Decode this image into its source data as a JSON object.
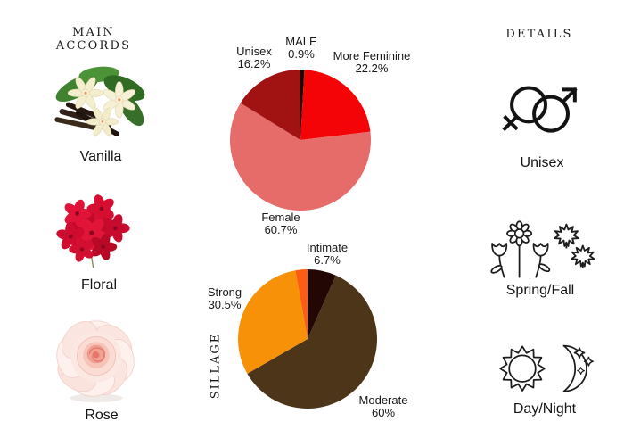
{
  "page": {
    "background": "#ffffff"
  },
  "main_accords": {
    "heading": "MAIN ACCORDS",
    "items": [
      {
        "name": "Vanilla",
        "icon": "vanilla-flowers-photo"
      },
      {
        "name": "Floral",
        "icon": "red-geranium-photo"
      },
      {
        "name": "Rose",
        "icon": "pink-rose-photo"
      }
    ]
  },
  "details": {
    "heading": "DETAILS",
    "items": [
      {
        "label": "Unisex",
        "icon": "unisex-gender-symbols-icon"
      },
      {
        "label": "Spring/Fall",
        "icon": "spring-flowers-fall-leaves-icon"
      },
      {
        "label": "Day/Night",
        "icon": "sun-moon-icon"
      }
    ]
  },
  "chart_data": [
    {
      "type": "pie",
      "name": "gender-audience",
      "start_angle": "12 o'clock",
      "direction": "clockwise",
      "legend_position": "labels around pie",
      "slices": [
        {
          "label": "MALE",
          "value": 0.9,
          "display": "0.9%",
          "color": "#0d0806"
        },
        {
          "label": "More Feminine",
          "value": 22.2,
          "display": "22.2%",
          "color": "#f50407"
        },
        {
          "label": "Female",
          "value": 60.7,
          "display": "60.7%",
          "color": "#e66c6a"
        },
        {
          "label": "Unisex",
          "value": 16.2,
          "display": "16.2%",
          "color": "#a11312"
        }
      ]
    },
    {
      "type": "pie",
      "name": "sillage",
      "title": "SILLAGE",
      "start_angle": "12 o'clock",
      "direction": "clockwise",
      "legend_position": "labels around pie",
      "slices": [
        {
          "label": "Intimate",
          "value": 6.7,
          "display": "6.7%",
          "color": "#220705"
        },
        {
          "label": "Moderate",
          "value": 60,
          "display": "60%",
          "color": "#4d3519"
        },
        {
          "label": "Strong",
          "value": 30.5,
          "display": "30.5%",
          "color": "#f79208"
        },
        {
          "label": "",
          "value": 2.8,
          "display": "",
          "color": "#fd5c13"
        }
      ]
    }
  ]
}
